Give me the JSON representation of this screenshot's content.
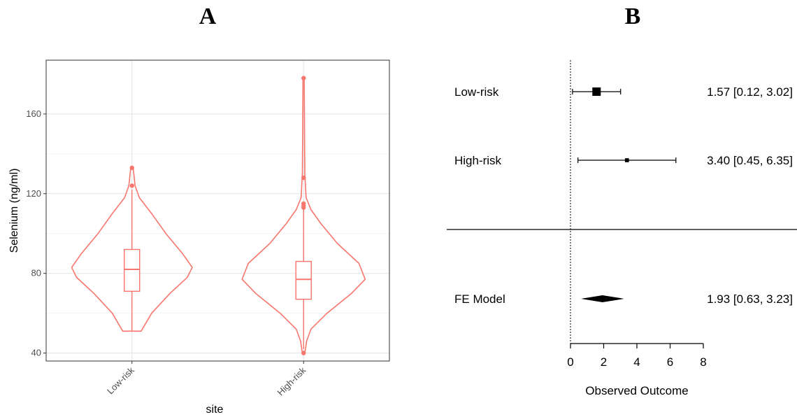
{
  "panel_labels": [
    "A",
    "B"
  ],
  "chart_data": [
    {
      "type": "violin",
      "title": "",
      "xlabel": "site",
      "ylabel": "Selenium (ng/ml)",
      "categories": [
        "Low-risk",
        "High-risk"
      ],
      "y_ticks": [
        40,
        80,
        120,
        160
      ],
      "ylim": [
        36,
        187
      ],
      "grid": true,
      "color": "#F8766D",
      "groups": [
        {
          "name": "Low-risk",
          "min": 51,
          "q1": 71,
          "median": 82,
          "q3": 92,
          "whisker_high": 122,
          "outliers": [
            124,
            133
          ],
          "density": [
            [
              51,
              0.15
            ],
            [
              60,
              0.32
            ],
            [
              70,
              0.62
            ],
            [
              78,
              0.9
            ],
            [
              83,
              0.98
            ],
            [
              90,
              0.82
            ],
            [
              100,
              0.55
            ],
            [
              110,
              0.32
            ],
            [
              118,
              0.12
            ],
            [
              124,
              0.05
            ],
            [
              133,
              0.02
            ]
          ]
        },
        {
          "name": "High-risk",
          "min": 42,
          "q1": 67,
          "median": 77,
          "q3": 86,
          "whisker_high": 112,
          "outliers": [
            40,
            113,
            114,
            115,
            128,
            178
          ],
          "density": [
            [
              40,
              0.02
            ],
            [
              46,
              0.05
            ],
            [
              52,
              0.12
            ],
            [
              60,
              0.38
            ],
            [
              70,
              0.78
            ],
            [
              77,
              1.0
            ],
            [
              85,
              0.9
            ],
            [
              95,
              0.55
            ],
            [
              105,
              0.28
            ],
            [
              112,
              0.12
            ],
            [
              118,
              0.04
            ],
            [
              130,
              0.02
            ],
            [
              150,
              0.015
            ],
            [
              178,
              0.01
            ]
          ]
        }
      ]
    },
    {
      "type": "forest",
      "xlabel": "Observed Outcome",
      "x_ticks": [
        0,
        2,
        4,
        6,
        8
      ],
      "xlim": [
        0,
        8
      ],
      "reference_line": 0,
      "studies": [
        {
          "label": "Low-risk",
          "estimate": 1.57,
          "ci_low": 0.12,
          "ci_high": 3.02,
          "text": "1.57 [0.12, 3.02]",
          "weight": 1.0
        },
        {
          "label": "High-risk",
          "estimate": 3.4,
          "ci_low": 0.45,
          "ci_high": 6.35,
          "text": "3.40 [0.45, 6.35]",
          "weight": 0.3
        }
      ],
      "summary": {
        "label": "FE Model",
        "estimate": 1.93,
        "ci_low": 0.63,
        "ci_high": 3.23,
        "text": "1.93 [0.63, 3.23]"
      }
    }
  ]
}
